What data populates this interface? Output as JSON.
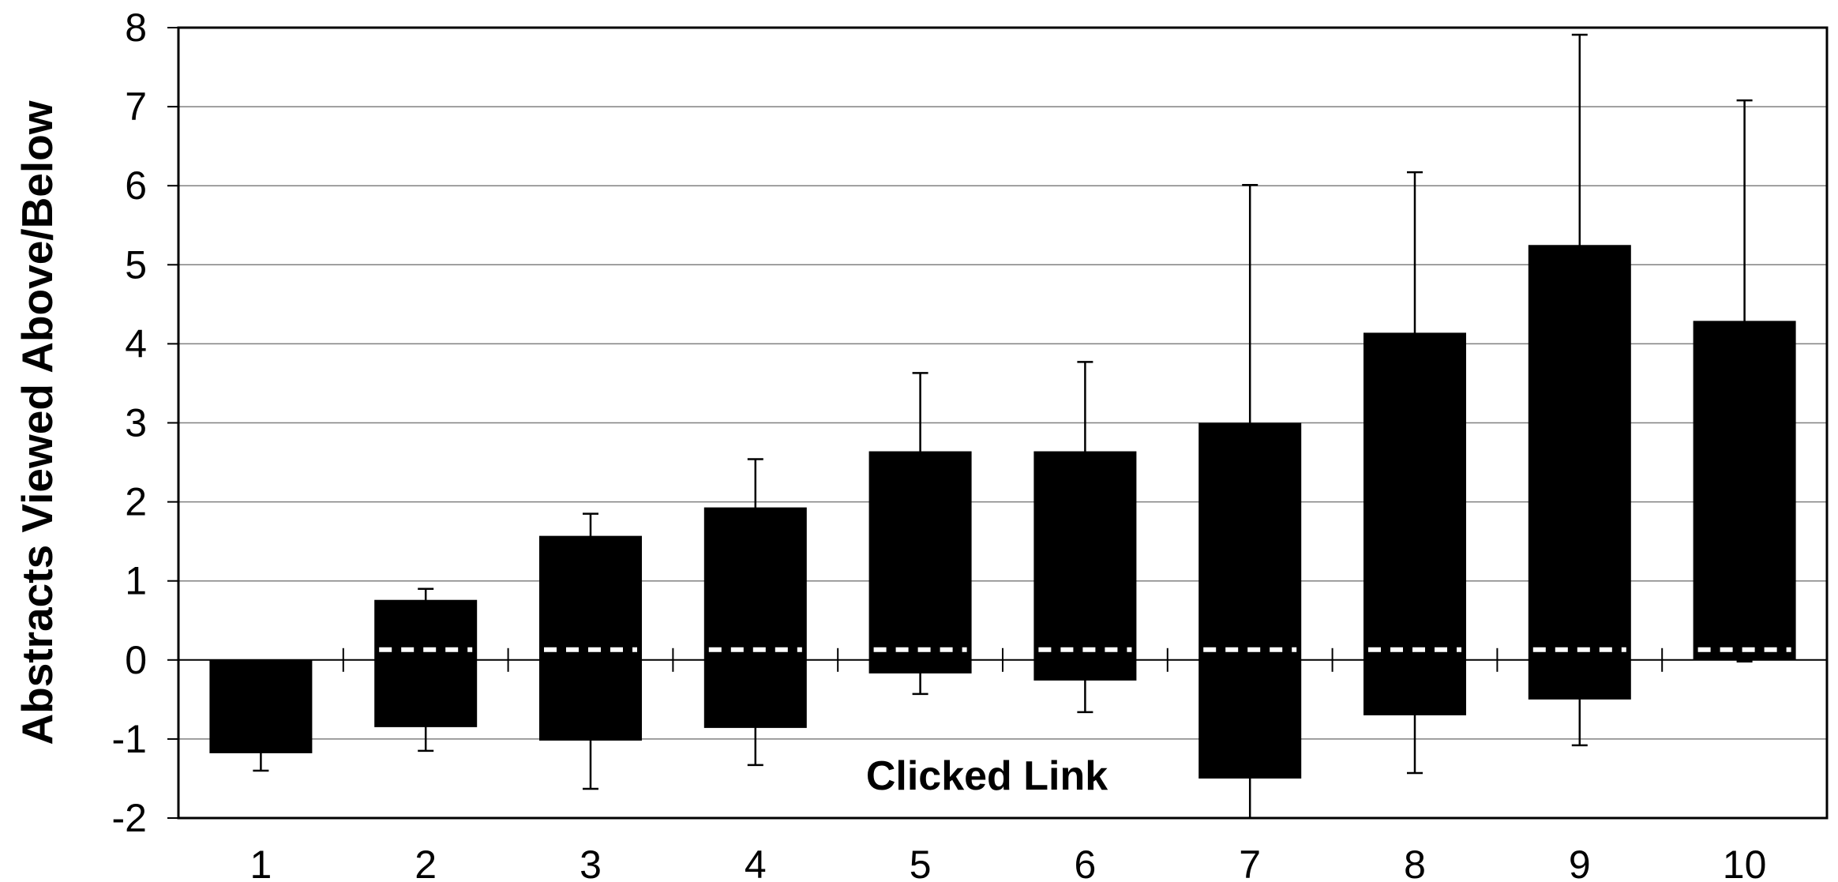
{
  "chart_data": {
    "type": "bar",
    "ylabel": "Abstracts Viewed Above/Below",
    "xlabel": "",
    "annotation": "Clicked Link",
    "categories": [
      "1",
      "2",
      "3",
      "4",
      "5",
      "6",
      "7",
      "8",
      "9",
      "10"
    ],
    "ylim": [
      -2,
      8
    ],
    "yticks": [
      -2,
      -1,
      0,
      1,
      2,
      3,
      4,
      5,
      6,
      7,
      8
    ],
    "grid": true,
    "series": [
      {
        "bar_low": [
          -1.18,
          -0.85,
          -1.02,
          -0.86,
          -0.17,
          -0.26,
          -1.5,
          -0.7,
          -0.5,
          0.0
        ],
        "bar_high": [
          0.0,
          0.76,
          1.57,
          1.93,
          2.64,
          2.64,
          3.0,
          4.14,
          5.25,
          4.29
        ],
        "error_low": [
          -1.4,
          -1.15,
          -1.63,
          -1.33,
          -0.43,
          -0.66,
          -2.0,
          -1.43,
          -1.08,
          -0.02
        ],
        "error_high": [
          0.0,
          0.9,
          1.85,
          2.54,
          3.63,
          3.77,
          6.01,
          6.17,
          7.91,
          7.08
        ]
      }
    ],
    "reference_line": 0.13,
    "colors": {
      "bar": "#000000",
      "grid": "#808080",
      "reference": "#ffffff"
    }
  }
}
